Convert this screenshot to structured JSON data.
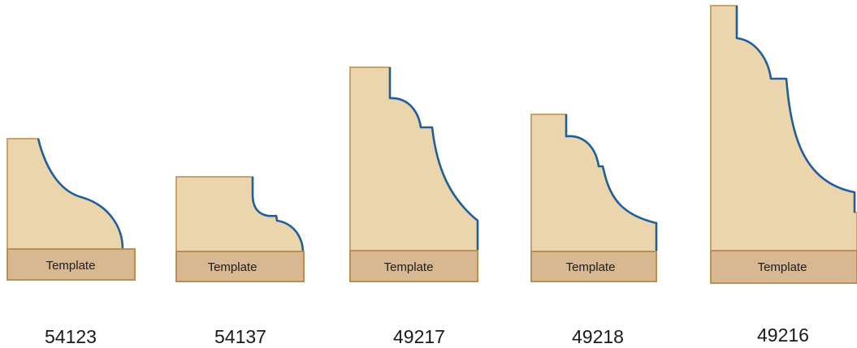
{
  "colors": {
    "profile_fill": "#ebd5ad",
    "profile_border": "#c9a36d",
    "template_fill": "#d8b891",
    "cutting_edge": "#1f5f9c"
  },
  "profiles": [
    {
      "code": "54123",
      "template_label": "Template"
    },
    {
      "code": "54137",
      "template_label": "Template"
    },
    {
      "code": "49217",
      "template_label": "Template"
    },
    {
      "code": "49218",
      "template_label": "Template"
    },
    {
      "code": "49216",
      "template_label": "Template"
    }
  ]
}
